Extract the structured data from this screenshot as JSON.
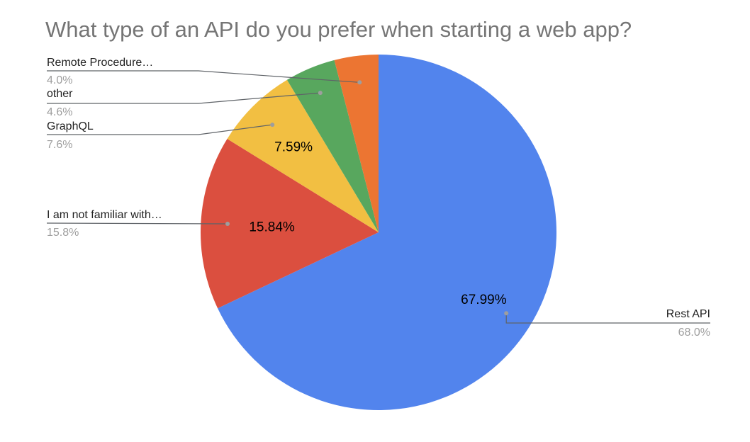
{
  "chart_data": {
    "type": "pie",
    "title": "What type of an API do you prefer when starting a web app?",
    "slices": [
      {
        "label": "Rest API",
        "value": 67.99,
        "legend_pct": "68.0%",
        "inner_label": "67.99%",
        "color": "#5284ED"
      },
      {
        "label": "I am not familiar with…",
        "value": 15.84,
        "legend_pct": "15.8%",
        "inner_label": "15.84%",
        "color": "#DB4F3F"
      },
      {
        "label": "GraphQL",
        "value": 7.59,
        "legend_pct": "7.6%",
        "inner_label": "7.59%",
        "color": "#F2BF42"
      },
      {
        "label": "other",
        "value": 4.6,
        "legend_pct": "4.6%",
        "inner_label": "",
        "color": "#58A75E"
      },
      {
        "label": "Remote Procedure…",
        "value": 4.0,
        "legend_pct": "4.0%",
        "inner_label": "",
        "color": "#EC7532"
      }
    ]
  }
}
